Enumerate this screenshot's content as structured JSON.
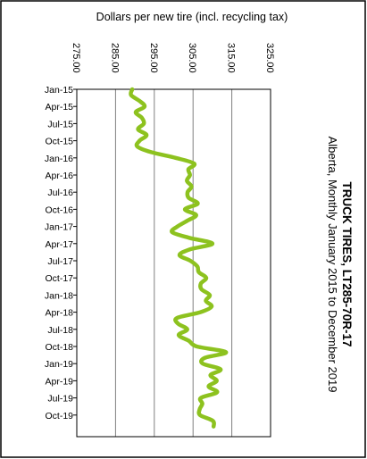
{
  "chart_data": {
    "type": "line",
    "orientation": "rotated-90 (value axis horizontal at top, time axis vertical on left)",
    "title": "TRUCK TIRES, LT285-70R-17",
    "subtitle": "Alberta, Monthly January 2015 to December 2019",
    "value_axis_label": "Dollars per new tire (incl. recycling tax)",
    "value_ticks": [
      "275.00",
      "285.00",
      "295.00",
      "305.00",
      "315.00",
      "325.00"
    ],
    "ylim": [
      275,
      325
    ],
    "time_ticks": [
      "Jan-15",
      "Apr-15",
      "Jul-15",
      "Oct-15",
      "Jan-16",
      "Apr-16",
      "Jul-16",
      "Oct-16",
      "Jan-17",
      "Apr-17",
      "Jul-17",
      "Oct-17",
      "Jan-18",
      "Apr-18",
      "Jul-18",
      "Oct-18",
      "Jan-19",
      "Apr-19",
      "Jul-19",
      "Oct-19"
    ],
    "grid": true,
    "legend": "none",
    "series_color": "#8dc21f",
    "series": [
      {
        "values": [
          289.3,
          289.0,
          291.1,
          292.5,
          290.2,
          291.8,
          292.3,
          290.8,
          293.0,
          291.2,
          290.6,
          294.2,
          300.5,
          305.3,
          303.8,
          304.2,
          303.4,
          304.6,
          303.6,
          303.9,
          306.2,
          302.9,
          305.8,
          303.5,
          301.0,
          299.6,
          304.1,
          310.0,
          304.2,
          301.5,
          304.3,
          306.1,
          306.5,
          308.4,
          307.0,
          307.2,
          309.3,
          308.3,
          309.8,
          306.9,
          300.9,
          301.1,
          303.5,
          301.3,
          303.9,
          306.0,
          313.5,
          308.0,
          307.5,
          312.1,
          309.5,
          311.1,
          309.0,
          311.2,
          307.0,
          307.4,
          306.7,
          306.8,
          310.1,
          310.3
        ]
      }
    ]
  }
}
